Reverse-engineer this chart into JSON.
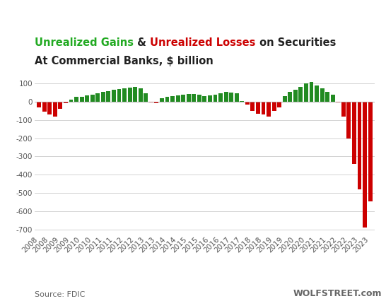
{
  "title_line1": {
    "parts": [
      {
        "text": "Unrealized Gains",
        "color": "#22aa22"
      },
      {
        "text": " & ",
        "color": "#222222"
      },
      {
        "text": "Unrealized Losses",
        "color": "#cc0000"
      },
      {
        "text": " on Securities",
        "color": "#222222"
      }
    ]
  },
  "title_line2": "At Commercial Banks, $ billion",
  "title_line2_color": "#222222",
  "source_text": "Source: FDIC",
  "watermark": "WOLFSTREET.com",
  "bar_color_positive": "#228B22",
  "bar_color_negative": "#cc0000",
  "ylim": [
    -730,
    145
  ],
  "yticks": [
    100,
    0,
    -100,
    -200,
    -300,
    -400,
    -500,
    -600,
    -700
  ],
  "background_color": "#ffffff",
  "grid_color": "#cccccc",
  "final_values": [
    -30,
    -55,
    -70,
    -80,
    -38,
    -8,
    12,
    25,
    28,
    33,
    40,
    48,
    52,
    58,
    65,
    70,
    72,
    78,
    80,
    72,
    45,
    -5,
    -8,
    18,
    28,
    32,
    36,
    40,
    42,
    44,
    38,
    30,
    35,
    40,
    48,
    52,
    50,
    45,
    5,
    -15,
    -50,
    -65,
    -72,
    -80,
    -50,
    -30,
    32,
    55,
    65,
    82,
    100,
    110,
    90,
    75,
    55,
    38,
    -5,
    -80,
    -200,
    -340,
    -480,
    -690,
    -545
  ],
  "title_fontsize": 10.5,
  "subtitle_fontsize": 10.5,
  "tick_fontsize": 7.5,
  "source_fontsize": 8,
  "watermark_fontsize": 9
}
